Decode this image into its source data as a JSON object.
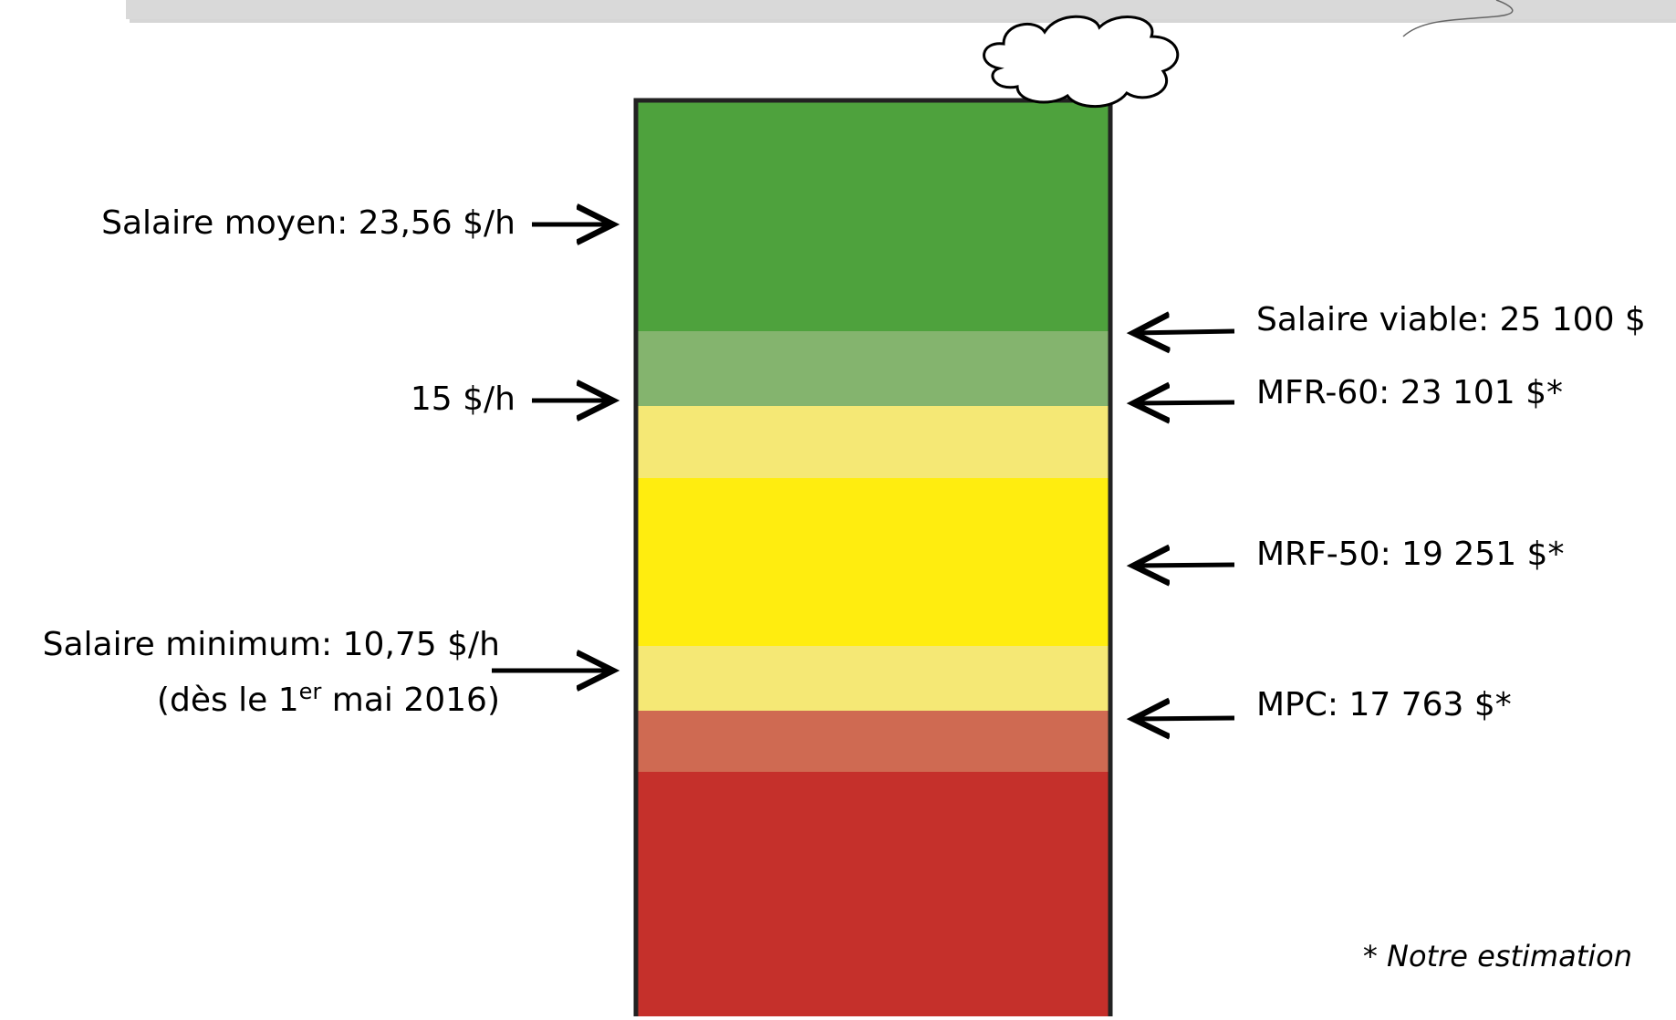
{
  "left_labels": [
    "Salaire moyen: 23,56 $/h",
    "15 $/h"
  ],
  "minimum": {
    "line1": "Salaire minimum: 10,75 $/h",
    "line2_start": "(dès le 1",
    "line2_sup": "er",
    "line2_end": " mai 2016)"
  },
  "right_labels": [
    "Salaire viable: 25 100 $",
    "MFR-60: 23 101 $*",
    "MRF-50: 19 251 $*",
    "MPC: 17 763 $*"
  ],
  "footnote": {
    "star": "* ",
    "text": "Notre estimation"
  }
}
